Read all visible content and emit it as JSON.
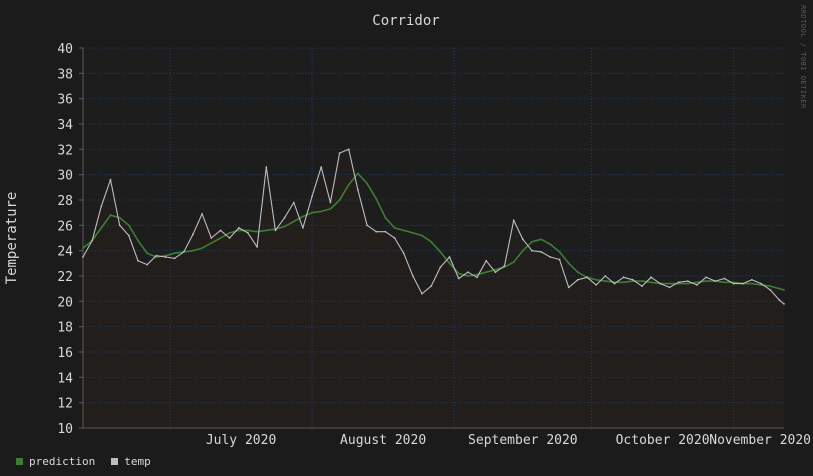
{
  "chart_data": {
    "type": "line",
    "title": "Corridor",
    "ylabel": "Temperature",
    "xlabel": "",
    "ylim": [
      10,
      40
    ],
    "xlim": [
      "2020-06-12",
      "2020-11-12"
    ],
    "yticks": [
      10,
      12,
      14,
      16,
      18,
      20,
      22,
      24,
      26,
      28,
      30,
      32,
      34,
      36,
      38,
      40
    ],
    "xticks": [
      {
        "label": "July 2020",
        "start": "2020-07-01",
        "end": "2020-08-01"
      },
      {
        "label": "August 2020",
        "start": "2020-08-01",
        "end": "2020-09-01"
      },
      {
        "label": "September 2020",
        "start": "2020-09-01",
        "end": "2020-10-01"
      },
      {
        "label": "October 2020",
        "start": "2020-10-01",
        "end": "2020-11-01"
      },
      {
        "label": "November 2020",
        "start": "2020-11-01",
        "end": "2020-12-01"
      }
    ],
    "month_boundaries": [
      "2020-07-01",
      "2020-08-01",
      "2020-09-01",
      "2020-10-01",
      "2020-11-01"
    ],
    "grid": true,
    "legend_position": "bottom-left",
    "credit": "RRDTOOL / TOBI OETIKER",
    "series": [
      {
        "name": "prediction",
        "color": "#3e7d34",
        "x": [
          "2020-06-12",
          "2020-06-14",
          "2020-06-16",
          "2020-06-18",
          "2020-06-20",
          "2020-06-22",
          "2020-06-24",
          "2020-06-26",
          "2020-06-28",
          "2020-06-30",
          "2020-07-02",
          "2020-07-04",
          "2020-07-06",
          "2020-07-08",
          "2020-07-10",
          "2020-07-12",
          "2020-07-14",
          "2020-07-16",
          "2020-07-18",
          "2020-07-20",
          "2020-07-22",
          "2020-07-24",
          "2020-07-26",
          "2020-07-28",
          "2020-07-30",
          "2020-08-01",
          "2020-08-03",
          "2020-08-05",
          "2020-08-07",
          "2020-08-09",
          "2020-08-11",
          "2020-08-13",
          "2020-08-15",
          "2020-08-17",
          "2020-08-19",
          "2020-08-21",
          "2020-08-23",
          "2020-08-25",
          "2020-08-27",
          "2020-08-29",
          "2020-08-31",
          "2020-09-02",
          "2020-09-04",
          "2020-09-06",
          "2020-09-08",
          "2020-09-10",
          "2020-09-12",
          "2020-09-14",
          "2020-09-16",
          "2020-09-18",
          "2020-09-20",
          "2020-09-22",
          "2020-09-24",
          "2020-09-26",
          "2020-09-28",
          "2020-09-30",
          "2020-10-02",
          "2020-10-04",
          "2020-10-06",
          "2020-10-08",
          "2020-10-10",
          "2020-10-12",
          "2020-10-14",
          "2020-10-16",
          "2020-10-18",
          "2020-10-20",
          "2020-10-22",
          "2020-10-24",
          "2020-10-26",
          "2020-10-28",
          "2020-10-30",
          "2020-11-01",
          "2020-11-03",
          "2020-11-05",
          "2020-11-07",
          "2020-11-09",
          "2020-11-11",
          "2020-11-12"
        ],
        "values": [
          24.2,
          24.8,
          25.8,
          26.8,
          26.6,
          26.0,
          24.8,
          23.8,
          23.5,
          23.6,
          23.8,
          23.9,
          24.0,
          24.2,
          24.6,
          25.0,
          25.4,
          25.6,
          25.6,
          25.5,
          25.6,
          25.7,
          25.9,
          26.3,
          26.7,
          27.0,
          27.1,
          27.3,
          28.0,
          29.2,
          30.1,
          29.3,
          28.1,
          26.6,
          25.8,
          25.6,
          25.4,
          25.2,
          24.7,
          23.9,
          23.0,
          22.2,
          22.0,
          22.1,
          22.3,
          22.5,
          22.7,
          23.1,
          24.0,
          24.7,
          24.9,
          24.5,
          23.9,
          23.0,
          22.3,
          21.9,
          21.7,
          21.6,
          21.5,
          21.5,
          21.6,
          21.6,
          21.5,
          21.4,
          21.4,
          21.4,
          21.4,
          21.5,
          21.6,
          21.6,
          21.5,
          21.5,
          21.4,
          21.4,
          21.3,
          21.2,
          21.0,
          20.9
        ]
      },
      {
        "name": "temp",
        "color": "#bdbdbd",
        "x": [
          "2020-06-12",
          "2020-06-14",
          "2020-06-16",
          "2020-06-18",
          "2020-06-20",
          "2020-06-22",
          "2020-06-24",
          "2020-06-26",
          "2020-06-28",
          "2020-06-30",
          "2020-07-02",
          "2020-07-04",
          "2020-07-06",
          "2020-07-08",
          "2020-07-10",
          "2020-07-12",
          "2020-07-14",
          "2020-07-16",
          "2020-07-18",
          "2020-07-20",
          "2020-07-22",
          "2020-07-24",
          "2020-07-26",
          "2020-07-28",
          "2020-07-30",
          "2020-08-01",
          "2020-08-03",
          "2020-08-05",
          "2020-08-07",
          "2020-08-09",
          "2020-08-11",
          "2020-08-13",
          "2020-08-15",
          "2020-08-17",
          "2020-08-19",
          "2020-08-21",
          "2020-08-23",
          "2020-08-25",
          "2020-08-27",
          "2020-08-29",
          "2020-08-31",
          "2020-09-02",
          "2020-09-04",
          "2020-09-06",
          "2020-09-08",
          "2020-09-10",
          "2020-09-12",
          "2020-09-14",
          "2020-09-16",
          "2020-09-18",
          "2020-09-20",
          "2020-09-22",
          "2020-09-24",
          "2020-09-26",
          "2020-09-28",
          "2020-09-30",
          "2020-10-02",
          "2020-10-04",
          "2020-10-06",
          "2020-10-08",
          "2020-10-10",
          "2020-10-12",
          "2020-10-14",
          "2020-10-16",
          "2020-10-18",
          "2020-10-20",
          "2020-10-22",
          "2020-10-24",
          "2020-10-26",
          "2020-10-28",
          "2020-10-30",
          "2020-11-01",
          "2020-11-03",
          "2020-11-05",
          "2020-11-07",
          "2020-11-09",
          "2020-11-11",
          "2020-11-12"
        ],
        "values": [
          23.5,
          24.8,
          27.5,
          29.6,
          26.0,
          25.2,
          23.2,
          22.9,
          23.6,
          23.5,
          23.4,
          23.9,
          25.3,
          26.9,
          25.0,
          25.6,
          25.0,
          25.8,
          25.4,
          24.3,
          30.6,
          25.6,
          26.6,
          27.8,
          25.8,
          28.3,
          30.6,
          27.8,
          31.7,
          32.0,
          28.8,
          26.0,
          25.5,
          25.5,
          25.0,
          23.8,
          22.0,
          20.6,
          21.2,
          22.7,
          23.5,
          21.8,
          22.3,
          21.9,
          23.2,
          22.3,
          22.8,
          26.4,
          24.9,
          24.0,
          23.9,
          23.5,
          23.3,
          21.1,
          21.7,
          21.9,
          21.3,
          22.0,
          21.4,
          21.9,
          21.7,
          21.2,
          21.9,
          21.4,
          21.1,
          21.5,
          21.6,
          21.3,
          21.9,
          21.6,
          21.8,
          21.4,
          21.4,
          21.7,
          21.4,
          20.9,
          20.1,
          19.8
        ]
      }
    ]
  }
}
